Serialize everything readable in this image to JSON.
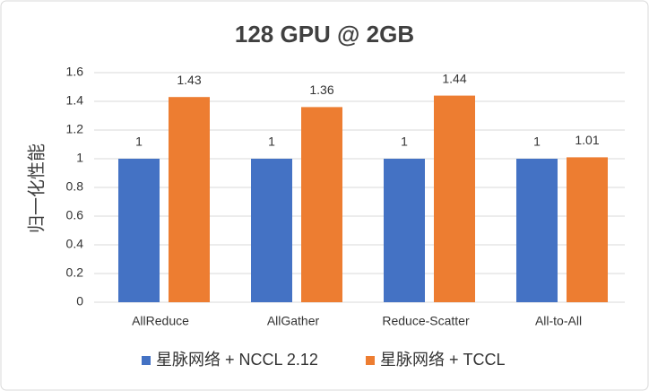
{
  "chart_data": {
    "type": "bar",
    "title": "128 GPU @ 2GB",
    "y_label": "归一化性能",
    "categories": [
      "AllReduce",
      "AllGather",
      "Reduce-Scatter",
      "All-to-All"
    ],
    "series": [
      {
        "name": "星脉网络 + NCCL 2.12",
        "color": "#4472c4",
        "values": [
          1,
          1,
          1,
          1
        ]
      },
      {
        "name": "星脉网络 + TCCL",
        "color": "#ed7d31",
        "values": [
          1.43,
          1.36,
          1.44,
          1.01
        ]
      }
    ],
    "ylim": [
      0,
      1.6
    ],
    "yticks": [
      0,
      0.2,
      0.4,
      0.6,
      0.8,
      1,
      1.2,
      1.4,
      1.6
    ],
    "grid": true,
    "legend": "bottom"
  }
}
